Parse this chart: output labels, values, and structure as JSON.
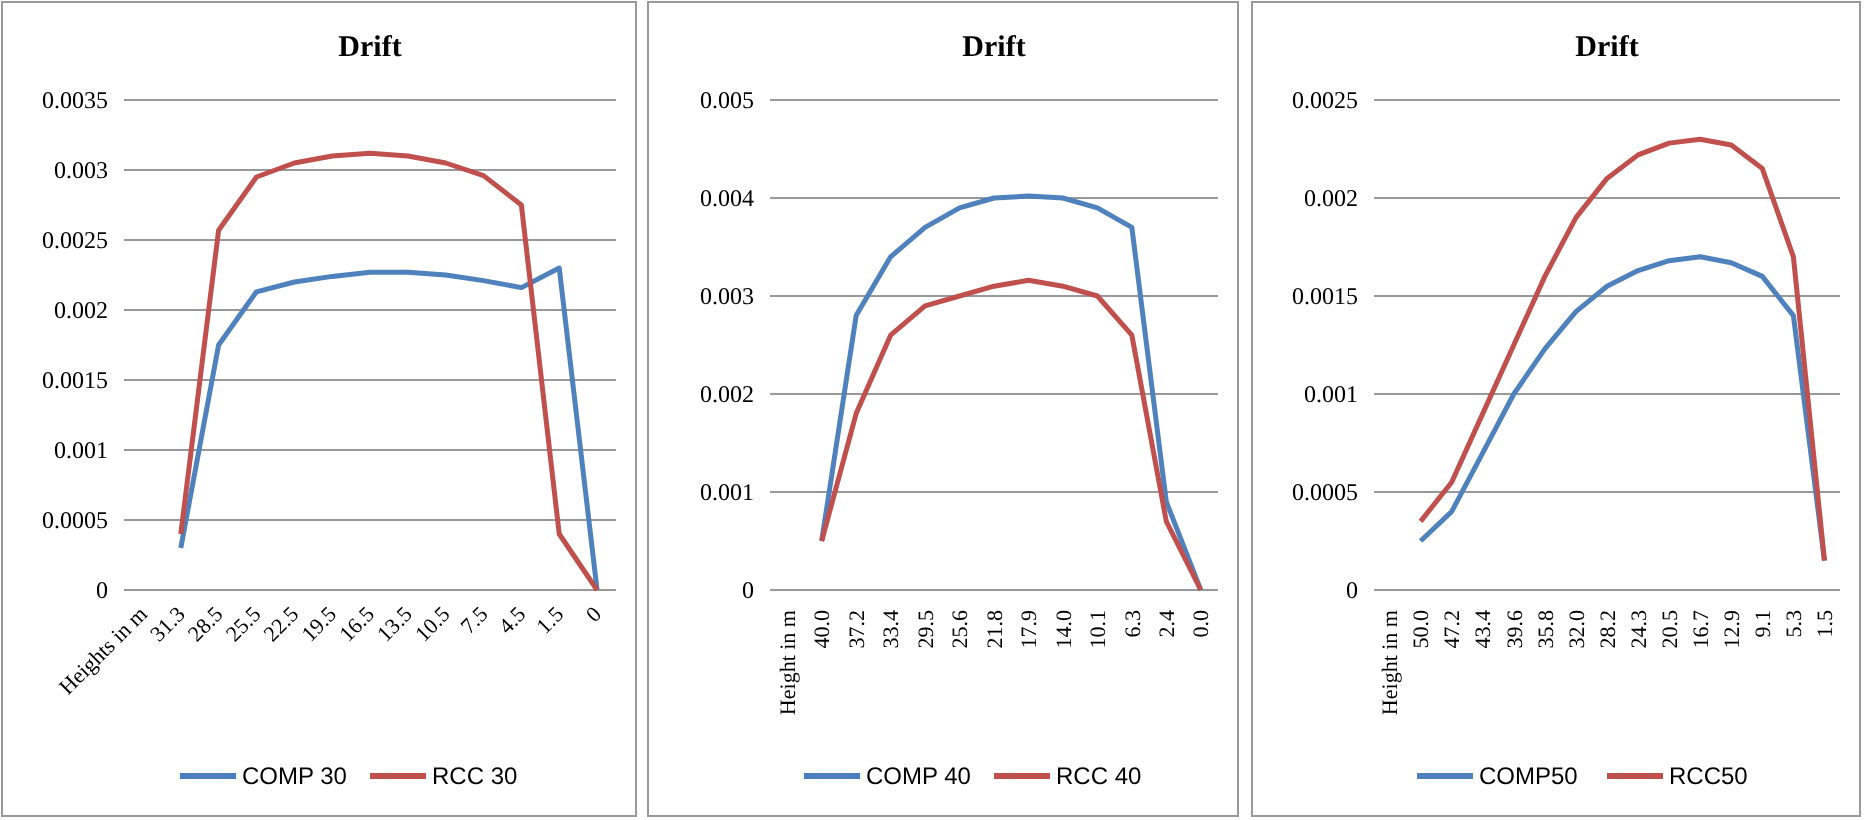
{
  "chart_data": [
    {
      "type": "line",
      "title": "Drift",
      "categories": [
        "Heights in m",
        "31.3",
        "28.5",
        "25.5",
        "22.5",
        "19.5",
        "16.5",
        "13.5",
        "10.5",
        "7.5",
        "4.5",
        "1.5",
        "0"
      ],
      "series": [
        {
          "name": "COMP 30",
          "color": "#4f81bd",
          "values": [
            null,
            0.0003,
            0.00175,
            0.00213,
            0.0022,
            0.00224,
            0.00227,
            0.00227,
            0.00225,
            0.00221,
            0.00216,
            0.0023,
            0
          ]
        },
        {
          "name": "RCC 30",
          "color": "#c0504d",
          "values": [
            null,
            0.0004,
            0.00257,
            0.00295,
            0.00305,
            0.0031,
            0.00312,
            0.0031,
            0.00305,
            0.00296,
            0.00275,
            0.0004,
            0
          ]
        }
      ],
      "ylim": [
        0,
        0.0035
      ],
      "yticks": [
        0,
        0.0005,
        0.001,
        0.0015,
        0.002,
        0.0025,
        0.003,
        0.0035
      ],
      "grid": "y",
      "legend": "bottom"
    },
    {
      "type": "line",
      "title": "Drift",
      "categories": [
        "Height in m",
        "40.0",
        "37.2",
        "33.4",
        "29.5",
        "25.6",
        "21.8",
        "17.9",
        "14.0",
        "10.1",
        "6.3",
        "2.4",
        "0.0"
      ],
      "series": [
        {
          "name": "COMP 40",
          "color": "#4f81bd",
          "values": [
            null,
            0.0005,
            0.0028,
            0.0034,
            0.0037,
            0.0039,
            0.004,
            0.00402,
            0.004,
            0.0039,
            0.0037,
            0.0009,
            0
          ]
        },
        {
          "name": "RCC 40",
          "color": "#c0504d",
          "values": [
            null,
            0.0005,
            0.0018,
            0.0026,
            0.0029,
            0.003,
            0.0031,
            0.00316,
            0.0031,
            0.003,
            0.0026,
            0.0007,
            0
          ]
        }
      ],
      "ylim": [
        0,
        0.005
      ],
      "yticks": [
        0,
        0.001,
        0.002,
        0.003,
        0.004,
        0.005
      ],
      "grid": "y",
      "legend": "bottom"
    },
    {
      "type": "line",
      "title": "Drift",
      "categories": [
        "Height in m",
        "50.0",
        "47.2",
        "43.4",
        "39.6",
        "35.8",
        "32.0",
        "28.2",
        "24.3",
        "20.5",
        "16.7",
        "12.9",
        "9.1",
        "5.3",
        "1.5"
      ],
      "series": [
        {
          "name": "COMP50",
          "color": "#4f81bd",
          "values": [
            null,
            0.00025,
            0.0004,
            0.0007,
            0.001,
            0.00123,
            0.00142,
            0.00155,
            0.00163,
            0.00168,
            0.0017,
            0.00167,
            0.0016,
            0.0014,
            0.00015
          ]
        },
        {
          "name": "RCC50",
          "color": "#c0504d",
          "values": [
            null,
            0.00035,
            0.00055,
            0.0009,
            0.00125,
            0.0016,
            0.0019,
            0.0021,
            0.00222,
            0.00228,
            0.0023,
            0.00227,
            0.00215,
            0.0017,
            0.00015
          ]
        }
      ],
      "ylim": [
        0,
        0.0025
      ],
      "yticks": [
        0,
        0.0005,
        0.001,
        0.0015,
        0.002,
        0.0025
      ],
      "grid": "y",
      "legend": "bottom"
    }
  ]
}
